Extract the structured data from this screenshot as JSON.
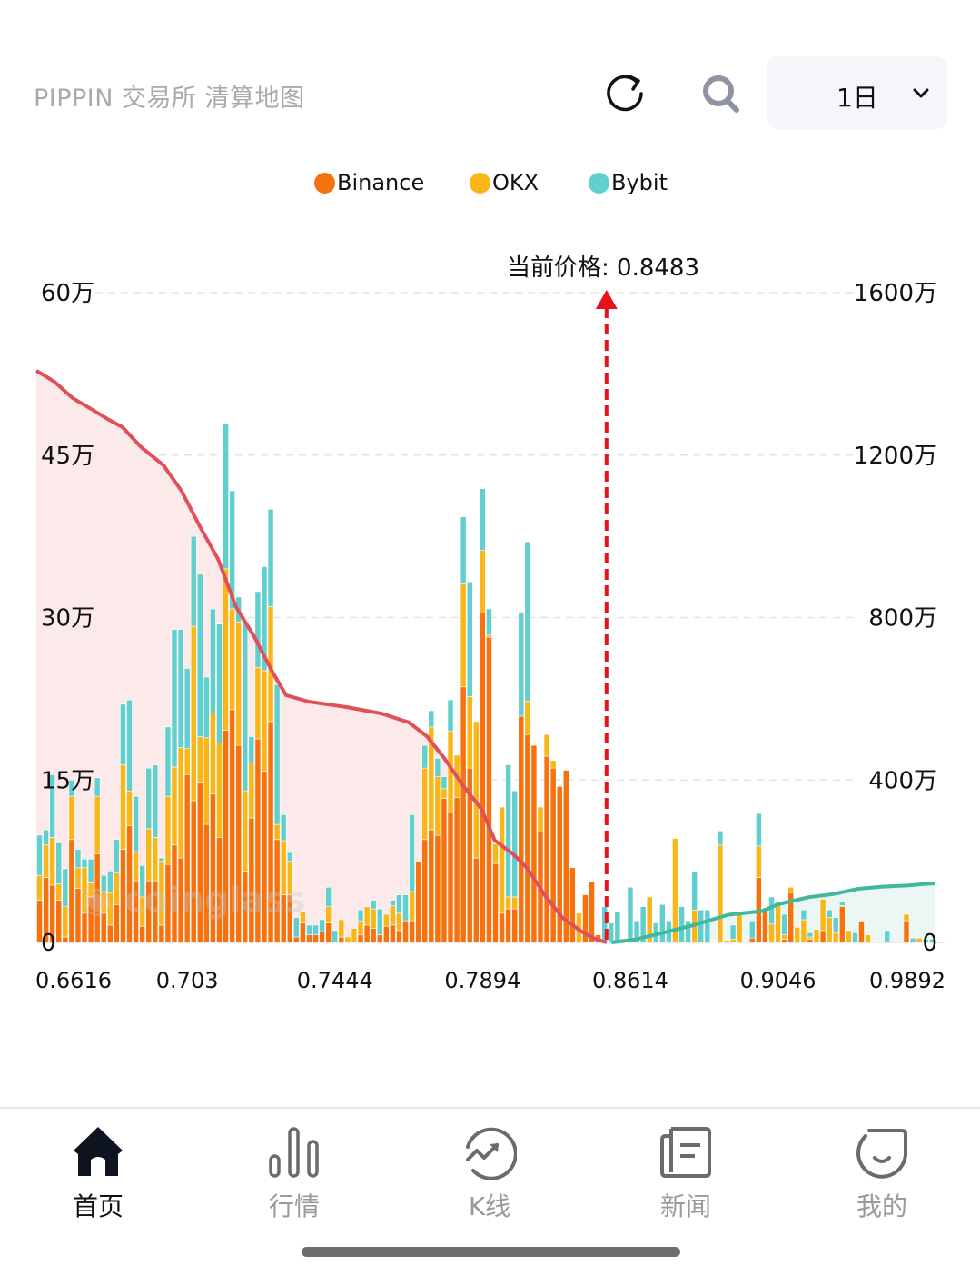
{
  "header": {
    "title": "PIPPIN 交易所 清算地图",
    "refresh_icon": "refresh-icon",
    "search_icon": "search-icon",
    "timeframe": "1日"
  },
  "legend": [
    {
      "label": "Binance",
      "color": "#f5720f"
    },
    {
      "label": "OKX",
      "color": "#f8b619"
    },
    {
      "label": "Bybit",
      "color": "#62cfcf"
    }
  ],
  "watermark": "coinglass",
  "current_price_label": "当前价格: 0.8483",
  "chart_data": {
    "type": "bar",
    "stacked": true,
    "title": "PIPPIN 交易所 清算地图",
    "current_price": 0.8483,
    "current_price_index": 88.8,
    "left_axis": {
      "ticks": [
        "0",
        "15万",
        "30万",
        "45万",
        "60万"
      ],
      "values": [
        0,
        15,
        30,
        45,
        60
      ],
      "unit": "万",
      "ylim": [
        0,
        60
      ]
    },
    "right_axis": {
      "ticks": [
        "0",
        "400万",
        "800万",
        "1200万",
        "1600万"
      ],
      "values": [
        0,
        400,
        800,
        1200,
        1600
      ],
      "unit": "万",
      "ylim": [
        0,
        1600
      ]
    },
    "x_ticks": [
      {
        "label": "0.6616",
        "index": 0
      },
      {
        "label": "0.703",
        "index": 23
      },
      {
        "label": "0.7444",
        "index": 46
      },
      {
        "label": "0.7894",
        "index": 69
      },
      {
        "label": "0.8614",
        "index": 92
      },
      {
        "label": "0.9046",
        "index": 115
      },
      {
        "label": "0.9892",
        "index": 139
      }
    ],
    "grid": true,
    "legend_position": "top-center",
    "series": [
      {
        "name": "Binance",
        "color": "#f5720f",
        "values": [
          3.9,
          6.0,
          5.3,
          3.9,
          0.5,
          9.5,
          5.0,
          2.7,
          4.2,
          8.2,
          2.7,
          1.6,
          3.5,
          8.6,
          10.8,
          5.7,
          1.5,
          5.7,
          5.7,
          1.6,
          7.2,
          9.0,
          7.8,
          15.5,
          13.1,
          14.8,
          10.9,
          13.7,
          9.7,
          19.6,
          21.5,
          18.2,
          6.6,
          11.5,
          18.8,
          15.8,
          20.4,
          9.5,
          4.4,
          4.4,
          0.5,
          1.8,
          0.7,
          0.7,
          1.0,
          1.8,
          0,
          0.5,
          0,
          0,
          0.7,
          1.6,
          1.3,
          0.7,
          1.5,
          1.6,
          1.1,
          2.0,
          2.0,
          7.5,
          9.5,
          10.4,
          9.9,
          13.3,
          12.0,
          13.4,
          23.6,
          16.1,
          7.8,
          30.4,
          28.2,
          7.3,
          2.7,
          3.1,
          3.1,
          20.9,
          19.2,
          18.2,
          10.2,
          17.2,
          16.1,
          14.4,
          15.9,
          6.9,
          0,
          4.4,
          5.6,
          0.7,
          0,
          0,
          0,
          0,
          0,
          0,
          0,
          0,
          0,
          0,
          0,
          0,
          0,
          0,
          0,
          0,
          0,
          0,
          0,
          0,
          0,
          0,
          0,
          0.4,
          6.0,
          3.0,
          0,
          0,
          0.3,
          4.6,
          0,
          0,
          0.3,
          0,
          1.1,
          0,
          0,
          3.3,
          0,
          0,
          1.9,
          0,
          0.1,
          0,
          0,
          0,
          0.1,
          2.0,
          0,
          0,
          0,
          0
        ]
      },
      {
        "name": "OKX",
        "color": "#f8b619",
        "values": [
          2.3,
          3.0,
          4.4,
          1.5,
          2.8,
          4.0,
          1.9,
          4.2,
          1.3,
          5.3,
          2.0,
          3.0,
          2.9,
          7.8,
          3.2,
          2.7,
          2.7,
          4.8,
          4.0,
          5.9,
          6.3,
          7.2,
          10.2,
          2.4,
          16.1,
          4.2,
          8.0,
          7.5,
          8.7,
          14.9,
          9.3,
          11.4,
          7.4,
          5.1,
          6.6,
          9.3,
          10.6,
          1.4,
          5.0,
          3.1,
          0,
          1.0,
          0,
          0,
          0,
          1.5,
          0,
          1.6,
          0.5,
          1.3,
          1.3,
          1.7,
          1.8,
          0,
          1.1,
          1.8,
          1.6,
          0,
          2.7,
          0,
          6.6,
          9.5,
          5.4,
          0.9,
          7.5,
          3.9,
          9.5,
          6.6,
          12.6,
          5.8,
          0.2,
          1.8,
          9.8,
          1.1,
          1.1,
          0,
          3.1,
          0,
          2.3,
          2.0,
          0.7,
          0,
          0,
          0,
          2.7,
          0,
          0,
          0,
          0,
          0,
          0,
          0,
          0,
          0,
          0,
          4.2,
          0,
          0,
          0,
          9.6,
          0,
          0,
          3.0,
          0,
          0,
          0,
          9.0,
          0.2,
          0.3,
          2.6,
          0,
          0,
          2.9,
          0,
          1.7,
          3.6,
          0.4,
          0.5,
          1.4,
          2.1,
          0.2,
          1.2,
          2.9,
          2.3,
          0.9,
          0.1,
          1.1,
          0,
          0.1,
          0.7,
          0,
          0,
          0,
          0,
          0,
          0.6,
          0,
          0.4,
          0,
          0
        ]
      },
      {
        "name": "Bybit",
        "color": "#62cfcf",
        "values": [
          3.7,
          1.4,
          5.8,
          3.8,
          3.5,
          1.5,
          1.7,
          0.8,
          2.2,
          1.7,
          1.5,
          2.0,
          3.1,
          5.6,
          8.4,
          5.1,
          2.9,
          5.6,
          6.7,
          0.3,
          6.4,
          12.7,
          10.9,
          7.4,
          8.3,
          15.0,
          5.6,
          9.6,
          11.0,
          13.4,
          10.9,
          2.3,
          15.6,
          2.4,
          7.0,
          9.6,
          9.0,
          12.9,
          2.4,
          0.8,
          1.8,
          0,
          0.9,
          0.9,
          1.1,
          1.8,
          1.1,
          0,
          0,
          0,
          1.0,
          0,
          0.8,
          2.4,
          0,
          0.5,
          1.7,
          2.4,
          7.1,
          0,
          2.1,
          1.5,
          1.7,
          1.1,
          2.9,
          0,
          6.2,
          10.6,
          0,
          5.7,
          2.4,
          0,
          0,
          12.2,
          9.8,
          9.6,
          14.7,
          0,
          0,
          0,
          0,
          0,
          0,
          0,
          0,
          0,
          0,
          0,
          3.3,
          1.8,
          2.8,
          0.1,
          5.1,
          2.0,
          3.3,
          0,
          1.8,
          3.5,
          2.0,
          0,
          3.3,
          2.0,
          3.5,
          3.0,
          3.0,
          0.1,
          1.3,
          0,
          1.3,
          0,
          0.1,
          1.6,
          3.0,
          0.2,
          2.5,
          0,
          1.9,
          0,
          0,
          0.9,
          0.4,
          0,
          0,
          0.7,
          1.4,
          0.4,
          0,
          0.9,
          0,
          0,
          0,
          0.1,
          1.1,
          0,
          0,
          0,
          0.4,
          0,
          0.3,
          0.3
        ]
      }
    ],
    "cumulative_lines": [
      {
        "name": "long-cumulative",
        "color": "#e0505a",
        "axis": "right",
        "index": [
          0,
          2.8,
          5.7,
          8.5,
          11.3,
          13.4,
          16.3,
          19.8,
          22.6,
          25.5,
          28.3,
          31.1,
          33.9,
          36.8,
          38.9,
          42.4,
          48.1,
          53.7,
          58,
          60.8,
          63.6,
          66.5,
          69.3,
          71.4,
          74.3,
          76.4,
          79.2,
          82,
          84.9,
          87,
          88.8
        ],
        "values": [
          1408,
          1381,
          1340,
          1314,
          1287,
          1269,
          1220,
          1175,
          1112,
          1023,
          944,
          826,
          754,
          665,
          609,
          593,
          580,
          564,
          542,
          508,
          452,
          385,
          329,
          251,
          217,
          184,
          116,
          60,
          27,
          9,
          0
        ]
      },
      {
        "name": "short-cumulative",
        "color": "#3fb89c",
        "axis": "right",
        "index": [
          89.6,
          93.4,
          97.3,
          102.1,
          107.8,
          113.1,
          115.5,
          120.3,
          124.1,
          128,
          131.8,
          135.6,
          138.5,
          140
        ],
        "values": [
          0,
          7.6,
          22.7,
          41.7,
          68.2,
          77.3,
          94,
          111.4,
          119,
          132,
          137.4,
          140,
          144,
          145.5
        ]
      }
    ]
  },
  "nav": [
    {
      "label": "首页",
      "icon": "home-icon",
      "active": true
    },
    {
      "label": "行情",
      "icon": "market-bars-icon",
      "active": false
    },
    {
      "label": "K线",
      "icon": "kline-icon",
      "active": false
    },
    {
      "label": "新闻",
      "icon": "news-icon",
      "active": false
    },
    {
      "label": "我的",
      "icon": "profile-icon",
      "active": false
    }
  ]
}
